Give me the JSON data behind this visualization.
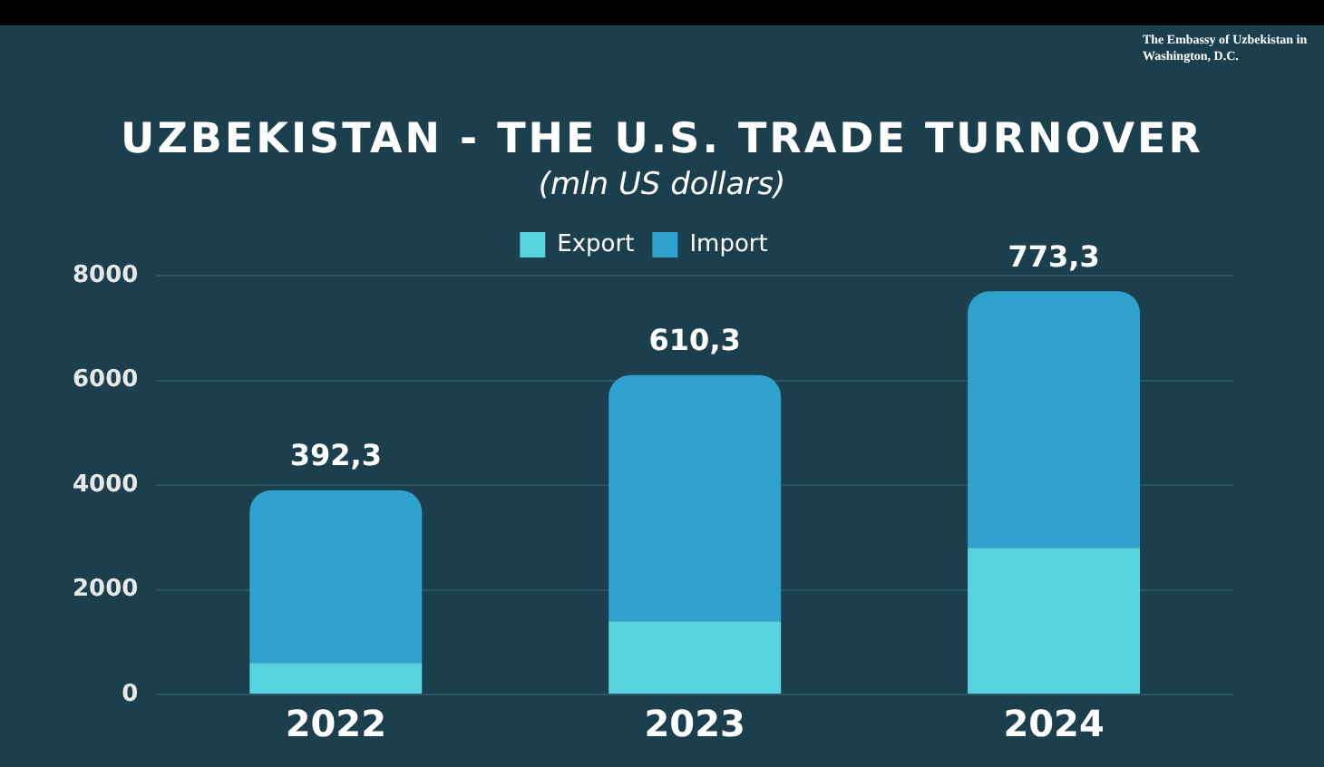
{
  "chart_data": {
    "type": "bar",
    "title": "UZBEKISTAN - THE U.S. TRADE TURNOVER",
    "subtitle": "(mln US dollars)",
    "annotations": [
      "The Embassy of Uzbekistan in Washington, D.C.",
      {
        "text": "392,3",
        "x": "2022",
        "y": 3900
      },
      {
        "text": "610,3",
        "x": "2023",
        "y": 6100
      },
      {
        "text": "773,3",
        "x": "2024",
        "y": 7700
      }
    ],
    "categories": [
      "2022",
      "2023",
      "2024"
    ],
    "series": [
      {
        "name": "Export",
        "color": "#56d3df",
        "values": [
          600,
          1400,
          2800
        ]
      },
      {
        "name": "Import",
        "color": "#2ea2cc",
        "values": [
          3300,
          4700,
          4900
        ]
      }
    ],
    "stacked": true,
    "ylim": [
      0,
      8000
    ],
    "yticks": [
      0,
      2000,
      4000,
      6000,
      8000
    ],
    "grid": "y",
    "legend": "top"
  }
}
